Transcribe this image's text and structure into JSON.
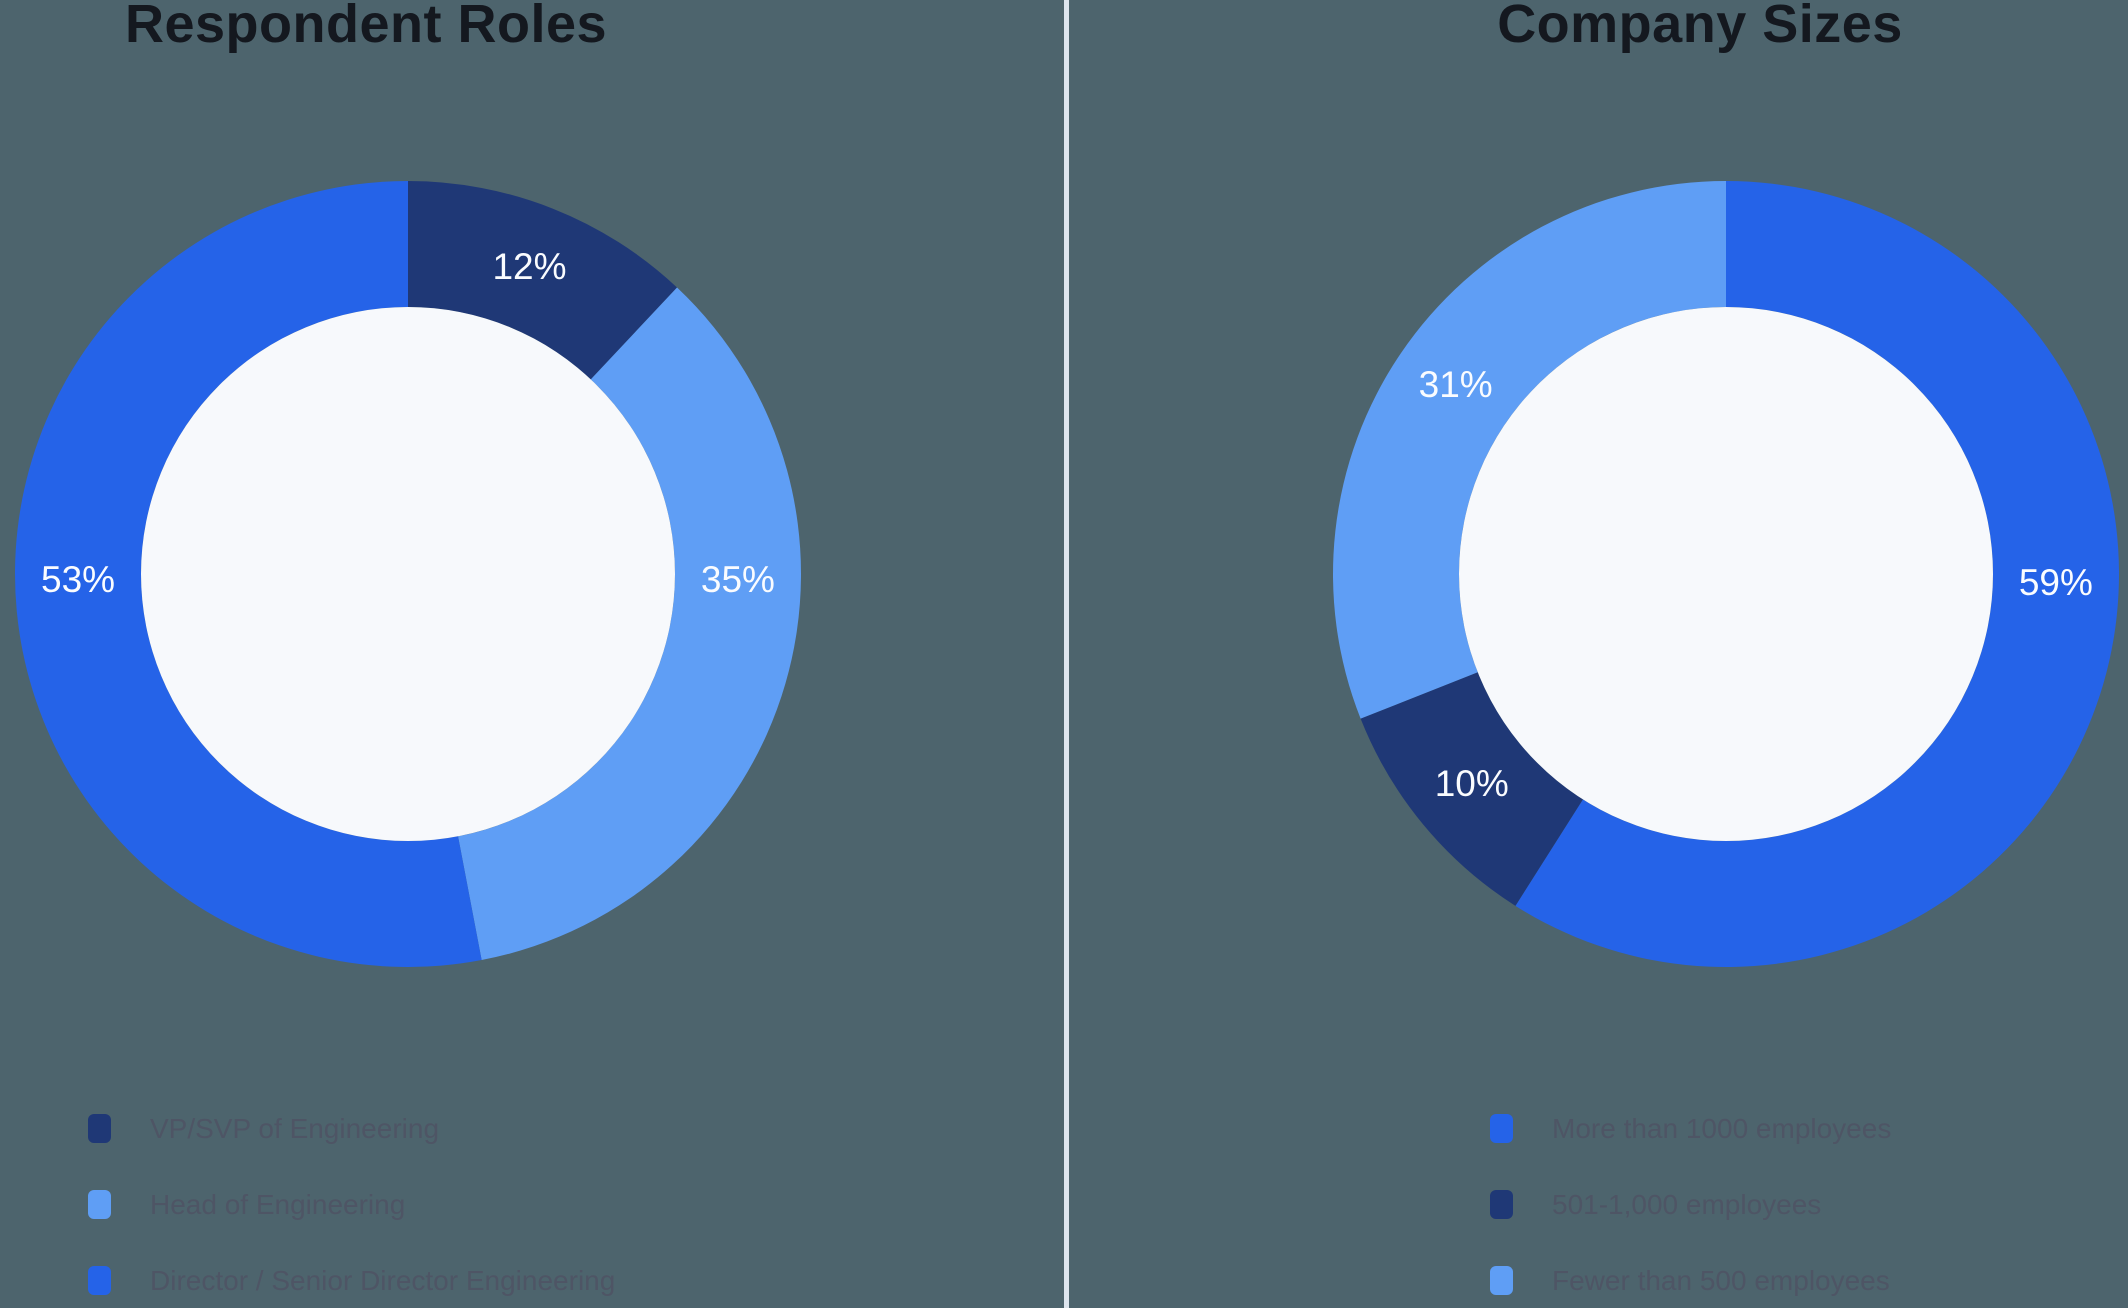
{
  "background_color": "#4d646d",
  "divider_color": "#dde5ee",
  "title_color": "#14181f",
  "legend_text_color": "#4e5565",
  "inner_circle_color": "#f7f9fc",
  "percent_label_color": "#fafcff",
  "chart_data": [
    {
      "type": "pie",
      "subtype": "donut",
      "title": "Respondent Roles",
      "categories": [
        "VP/SVP of Engineering",
        "Head of Engineering",
        "Director / Senior Director Engineering"
      ],
      "values": [
        12,
        35,
        53
      ],
      "unit": "%",
      "data_labels": [
        "12%",
        "35%",
        "53%"
      ],
      "colors": [
        "#1f3876",
        "#5f9ef5",
        "#2563e8"
      ],
      "start_angle_deg": 0,
      "direction": "clockwise",
      "label_angles_deg": [
        21.6,
        91,
        269
      ],
      "legend_position": "bottom-left",
      "grid": false
    },
    {
      "type": "pie",
      "subtype": "donut",
      "title": "Company Sizes",
      "categories": [
        "More than 1000 employees",
        "501-1,000 employees",
        "Fewer than 500 employees"
      ],
      "values": [
        59,
        10,
        31
      ],
      "unit": "%",
      "data_labels": [
        "59%",
        "10%",
        "31%"
      ],
      "colors": [
        "#2563e8",
        "#1f3876",
        "#5f9ef5"
      ],
      "start_angle_deg": 0,
      "direction": "clockwise",
      "label_angles_deg": [
        91.5,
        230.4,
        305
      ],
      "legend_position": "bottom-left",
      "grid": false
    }
  ]
}
